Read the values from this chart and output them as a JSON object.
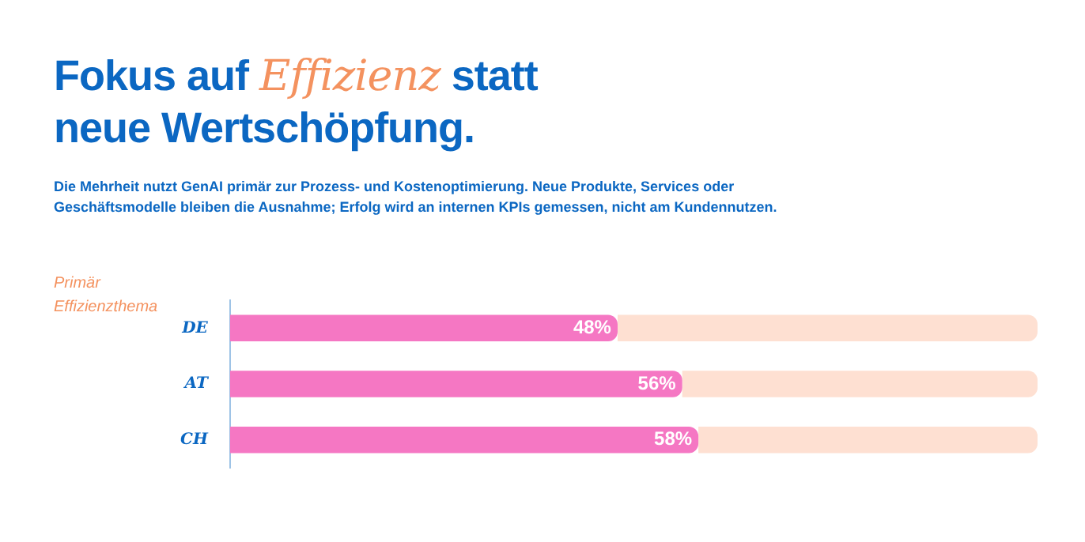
{
  "chart_data": {
    "type": "bar",
    "orientation": "horizontal",
    "stacked": true,
    "title": "Fokus auf Effizienz statt neue Wertschöpfung.",
    "subtitle": "Die Mehrheit nutzt GenAI primär zur Prozess- und Kostenoptimierung. Neue Produkte, Services oder Geschäftsmodelle bleiben die Ausnahme; Erfolg wird an internen KPIs gemessen, nicht am Kundennutzen.",
    "annotations": [
      "Primär Effizienzthema"
    ],
    "categories": [
      "DE",
      "AT",
      "CH"
    ],
    "series": [
      {
        "color": "#f577c3",
        "values": [
          48,
          56,
          58
        ],
        "value_labels": [
          "48%",
          "56%",
          "58%"
        ]
      },
      {
        "color": "#fee0d2",
        "values": [
          52,
          44,
          42
        ]
      }
    ],
    "xlim": [
      0,
      100
    ],
    "tick_labels": "y"
  }
}
